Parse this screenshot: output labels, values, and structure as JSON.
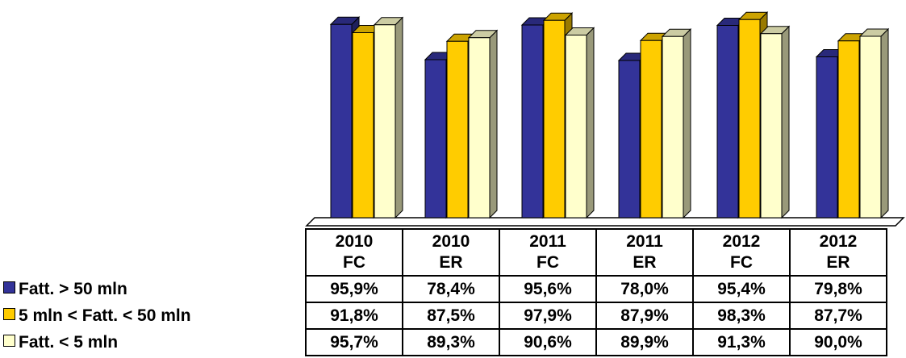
{
  "chart_data": {
    "type": "bar3d",
    "categories": [
      "2010 FC",
      "2010 ER",
      "2011 FC",
      "2011 ER",
      "2012 FC",
      "2012 ER"
    ],
    "series": [
      {
        "name": "Fatt. > 50 mln",
        "color": "#333399",
        "values": [
          95.9,
          78.4,
          95.6,
          78.0,
          95.4,
          79.8
        ],
        "value_labels": [
          "95,9%",
          "78,4%",
          "95,6%",
          "78,0%",
          "95,4%",
          "79,8%"
        ]
      },
      {
        "name": "5 mln < Fatt. < 50 mln",
        "color": "#ffcc00",
        "values": [
          91.8,
          87.5,
          97.9,
          87.9,
          98.3,
          87.7
        ],
        "value_labels": [
          "91,8%",
          "87,5%",
          "97,9%",
          "87,9%",
          "98,3%",
          "87,7%"
        ]
      },
      {
        "name": "Fatt. < 5 mln",
        "color": "#ffffcc",
        "values": [
          95.7,
          89.3,
          90.6,
          89.9,
          91.3,
          90.0
        ],
        "value_labels": [
          "95,7%",
          "89,3%",
          "90,6%",
          "89,9%",
          "91,3%",
          "90,0%"
        ]
      }
    ]
  }
}
